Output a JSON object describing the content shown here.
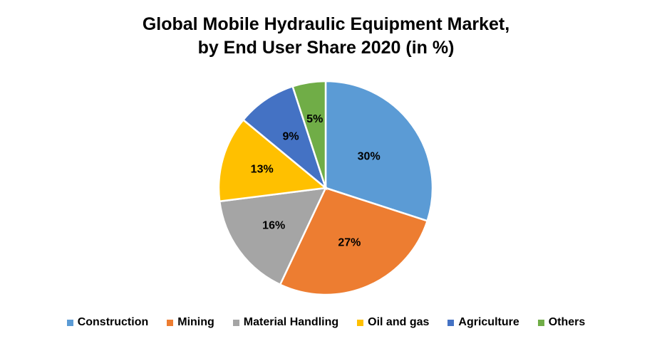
{
  "chart_data": {
    "type": "pie",
    "title_line1": "Global Mobile Hydraulic Equipment Market,",
    "title_line2": "by End User Share 2020 (in %)",
    "categories": [
      "Construction",
      "Mining",
      "Material Handling",
      "Oil and gas",
      "Agriculture",
      "Others"
    ],
    "values": [
      30,
      27,
      16,
      13,
      9,
      5
    ],
    "data_labels": [
      "30%",
      "27%",
      "16%",
      "13%",
      "9%",
      "5%"
    ],
    "colors": [
      "#5B9BD5",
      "#ED7D31",
      "#A5A5A5",
      "#FFC000",
      "#4472C4",
      "#70AD47"
    ],
    "legend_position": "bottom"
  }
}
